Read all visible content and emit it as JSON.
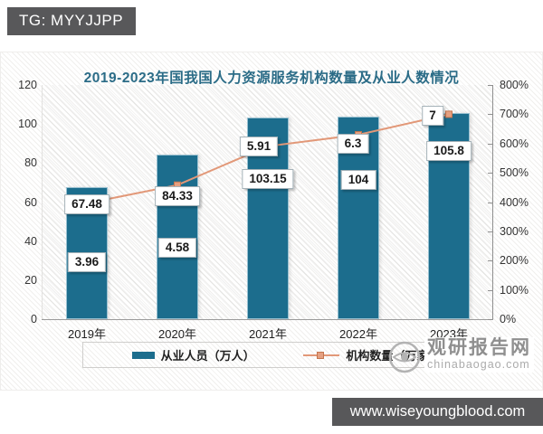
{
  "overlay": {
    "badge_label": "TG: MYYJJPP",
    "banner_label": "www.wiseyoungblood.com"
  },
  "watermark": {
    "site_name": "观研报告网",
    "site_url": "chinabaogao.com"
  },
  "chart_data": {
    "type": "bar",
    "title": "2019-2023年国我国人力资源服务机构数量及从业人数情况",
    "categories": [
      "2019年",
      "2020年",
      "2021年",
      "2022年",
      "2023年"
    ],
    "series": [
      {
        "name": "从业人员（万人）",
        "kind": "bar",
        "axis": "left",
        "color": "#1c6d8d",
        "values": [
          67.48,
          84.33,
          103.15,
          104,
          105.8
        ]
      },
      {
        "name": "机构数量（万家）",
        "kind": "line",
        "axis": "right",
        "color": "#e29878",
        "marker_fill": "#e5a081",
        "marker_border": "#c4764f",
        "values": [
          3.96,
          4.58,
          5.91,
          6.3,
          7
        ]
      }
    ],
    "left_axis": {
      "min": 0,
      "max": 120,
      "tick_labels": [
        "0",
        "20",
        "40",
        "60",
        "80",
        "100",
        "120"
      ]
    },
    "right_axis": {
      "min": 0,
      "max": 800,
      "tick_labels": [
        "0%",
        "100%",
        "200%",
        "300%",
        "400%",
        "500%",
        "600%",
        "700%",
        "800%"
      ]
    },
    "legend": {
      "position": "bottom",
      "entries": [
        "从业人员（万人）",
        "机构数量（万家）"
      ]
    },
    "grid": false,
    "title_color": "#2b6c87"
  }
}
